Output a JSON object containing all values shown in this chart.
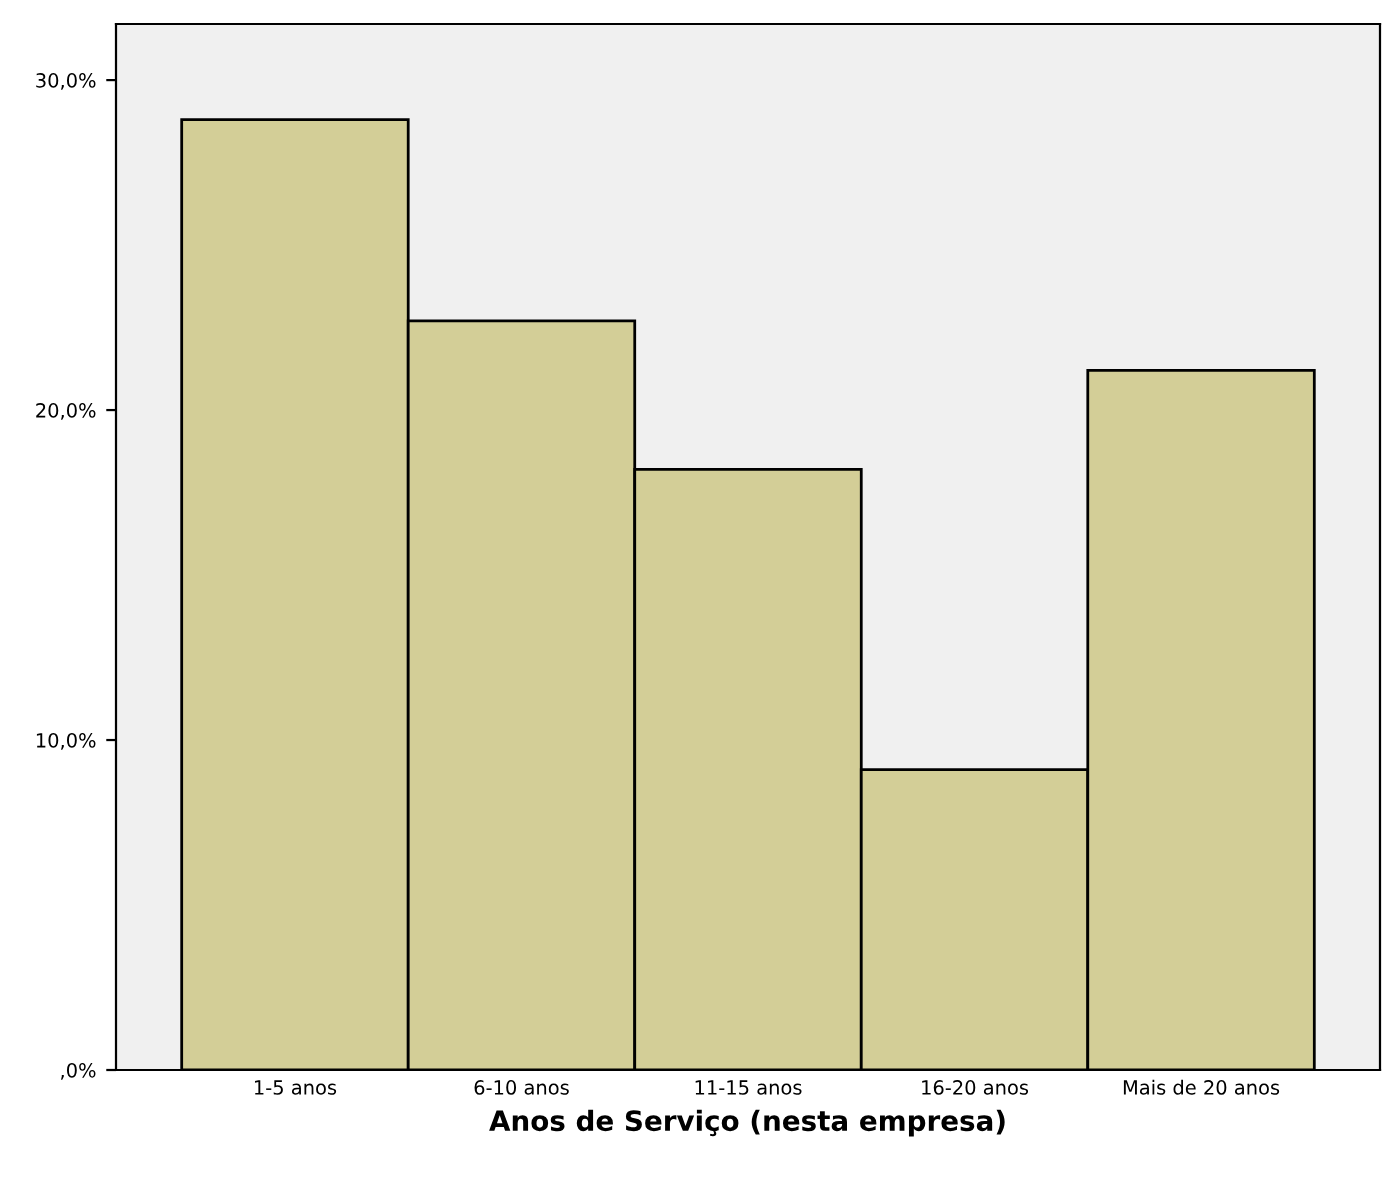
{
  "chart_data": {
    "type": "bar",
    "xlabel": "Anos de Serviço (nesta empresa)",
    "categories": [
      "1-5 anos",
      "6-10 anos",
      "11-15 anos",
      "16-20 anos",
      "Mais de 20 anos"
    ],
    "values": [
      28.8,
      22.7,
      18.2,
      9.1,
      21.2
    ],
    "color": "#d3ce97",
    "ylim": [
      0,
      31.7
    ],
    "yticks": [
      {
        "value": 0,
        "label": ",0%"
      },
      {
        "value": 10,
        "label": "10,0%"
      },
      {
        "value": 20,
        "label": "20,0%"
      },
      {
        "value": 30,
        "label": "30,0%"
      }
    ],
    "grid": false,
    "legend": false
  }
}
